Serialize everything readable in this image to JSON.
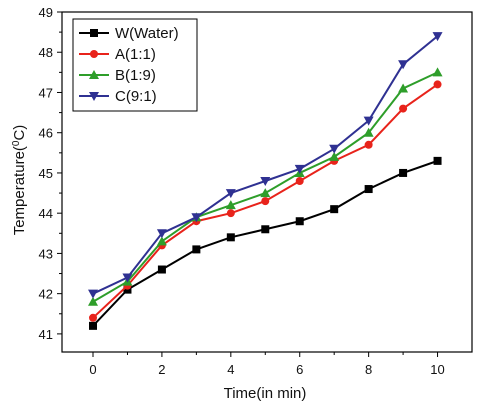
{
  "chart_data": {
    "type": "line",
    "xlabel": "Time(in min)",
    "ylabel": "Temperature(°C)",
    "ylabel_parts": {
      "pre": "Temperature(",
      "sup": "0",
      "post": "C)"
    },
    "xlim": [
      -0.9,
      11.0
    ],
    "ylim": [
      40.55,
      49.0
    ],
    "xticks": [
      0,
      2,
      4,
      6,
      8,
      10
    ],
    "yticks": [
      41,
      42,
      43,
      44,
      45,
      46,
      47,
      48,
      49
    ],
    "grid": false,
    "legend_position": "top-left",
    "x": [
      0,
      1,
      2,
      3,
      4,
      5,
      6,
      7,
      8,
      9,
      10
    ],
    "series": [
      {
        "name": "W(Water)",
        "color": "#000000",
        "marker": "square",
        "values": [
          41.2,
          42.1,
          42.6,
          43.1,
          43.4,
          43.6,
          43.8,
          44.1,
          44.6,
          45.0,
          45.3
        ]
      },
      {
        "name": "A(1:1)",
        "color": "#e8231b",
        "marker": "circle",
        "values": [
          41.4,
          42.2,
          43.2,
          43.8,
          44.0,
          44.3,
          44.8,
          45.3,
          45.7,
          46.6,
          47.2
        ]
      },
      {
        "name": "B(1:9)",
        "color": "#2e9e2a",
        "marker": "triangle-up",
        "values": [
          41.8,
          42.3,
          43.3,
          43.9,
          44.2,
          44.5,
          45.0,
          45.4,
          46.0,
          47.1,
          47.5
        ]
      },
      {
        "name": "C(9:1)",
        "color": "#2f3192",
        "marker": "triangle-down",
        "values": [
          42.0,
          42.4,
          43.5,
          43.9,
          44.5,
          44.8,
          45.1,
          45.6,
          46.3,
          47.7,
          48.4
        ]
      }
    ]
  }
}
